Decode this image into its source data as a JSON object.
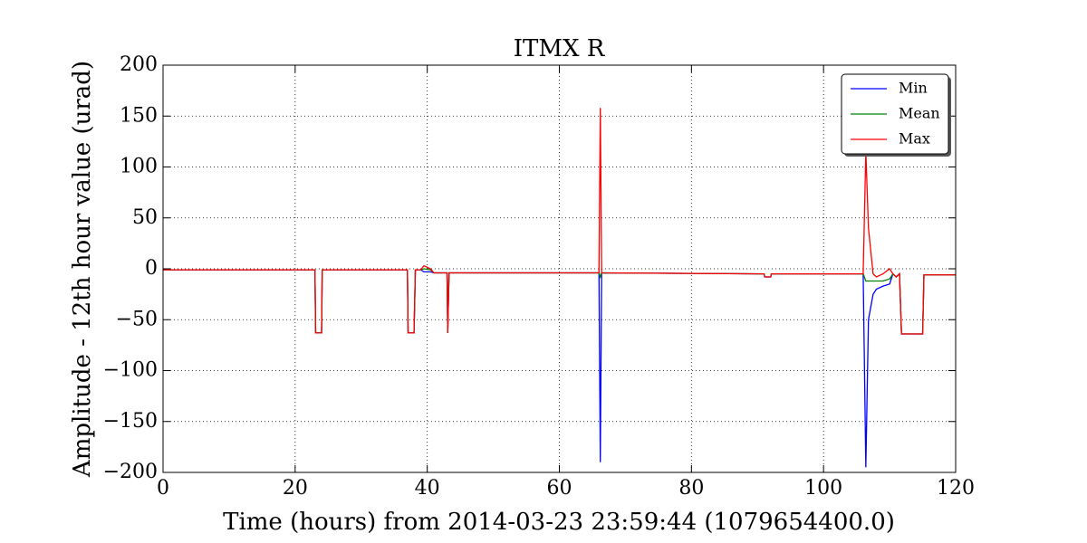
{
  "chart_data": {
    "type": "line",
    "title": "ITMX R",
    "xlabel": "Time (hours) from 2014-03-23 23:59:44 (1079654400.0)",
    "ylabel": "Amplitude - 12th hour value (urad)",
    "x": [
      0,
      23,
      23.1,
      24,
      24.1,
      37,
      37.1,
      38,
      38.2,
      39,
      39.5,
      40.5,
      41,
      43,
      43.1,
      43.3,
      66,
      66.2,
      66.4,
      91,
      91.1,
      92,
      92.1,
      106,
      106.4,
      106.8,
      107.5,
      108,
      109,
      110,
      110.5,
      111,
      111.5,
      111.8,
      115,
      115.2,
      120
    ],
    "series": [
      {
        "name": "Min",
        "color": "#0000ff",
        "values": [
          -1,
          -1,
          -63,
          -63,
          -1,
          -1,
          -63,
          -63,
          -1,
          -1,
          -3,
          -3,
          -4,
          -4,
          -63,
          -4,
          -4,
          -190,
          -4,
          -5,
          -8,
          -8,
          -5,
          -5,
          -195,
          -50,
          -25,
          -20,
          -17,
          -15,
          -5,
          -8,
          -5,
          -64,
          -64,
          -6,
          -6
        ]
      },
      {
        "name": "Mean",
        "color": "#008000",
        "values": [
          -1,
          -1,
          -63,
          -63,
          -1,
          -1,
          -63,
          -63,
          -1,
          -1,
          0,
          -1,
          -4,
          -4,
          -63,
          -4,
          -4,
          -8,
          -4,
          -5,
          -8,
          -8,
          -5,
          -5,
          -12,
          -12,
          -12,
          -12,
          -12,
          -10,
          -5,
          -8,
          -5,
          -64,
          -64,
          -6,
          -6
        ]
      },
      {
        "name": "Max",
        "color": "#ff0000",
        "values": [
          -1,
          -1,
          -63,
          -63,
          -1,
          -1,
          -63,
          -63,
          -1,
          -1,
          3,
          0,
          -4,
          -4,
          -63,
          -4,
          -4,
          158,
          -4,
          -5,
          -8,
          -8,
          -5,
          -5,
          115,
          40,
          -5,
          -8,
          -5,
          0,
          -5,
          -8,
          -5,
          -64,
          -64,
          -6,
          -6
        ]
      }
    ],
    "xlim": [
      0,
      120
    ],
    "xticks": [
      0,
      20,
      40,
      60,
      80,
      100,
      120
    ],
    "ylim": [
      -200,
      200
    ],
    "yticks": [
      {
        "value": -200,
        "label": "−200"
      },
      {
        "value": -150,
        "label": "−150"
      },
      {
        "value": -100,
        "label": "−100"
      },
      {
        "value": -50,
        "label": "−50"
      },
      0,
      50,
      100,
      150,
      200
    ],
    "grid": true,
    "legend": "upper right"
  }
}
